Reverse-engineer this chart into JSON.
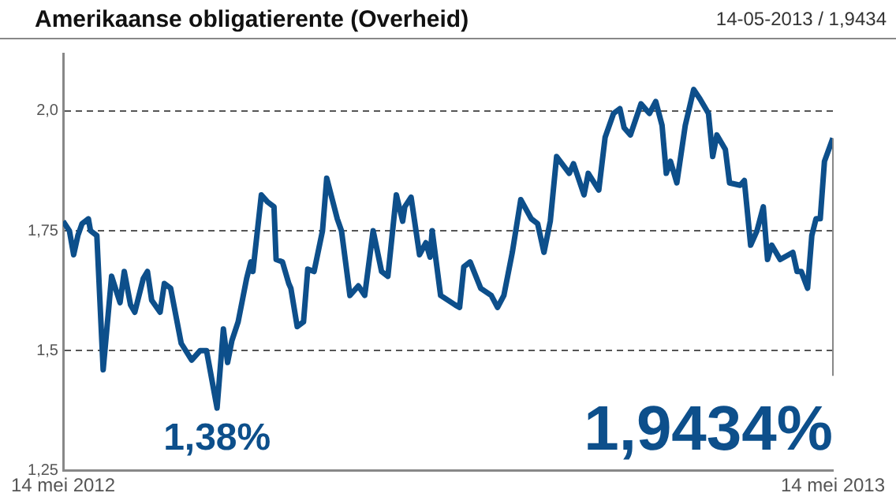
{
  "chart_data": {
    "type": "line",
    "title": "Amerikaanse obligatierente (Overheid)",
    "subtitle": "14-05-2013 / 1,9434",
    "x": [
      "2012-05-14",
      "2012-05-17",
      "2012-05-19",
      "2012-05-21",
      "2012-05-23",
      "2012-05-26",
      "2012-05-27",
      "2012-05-30",
      "2012-06-02",
      "2012-06-06",
      "2012-06-10",
      "2012-06-12",
      "2012-06-15",
      "2012-06-17",
      "2012-06-21",
      "2012-06-23",
      "2012-06-25",
      "2012-06-29",
      "2012-07-01",
      "2012-07-04",
      "2012-07-09",
      "2012-07-14",
      "2012-07-18",
      "2012-07-21",
      "2012-07-26",
      "2012-07-29",
      "2012-07-31",
      "2012-08-02",
      "2012-08-05",
      "2012-08-09",
      "2012-08-11",
      "2012-08-12",
      "2012-08-16",
      "2012-08-19",
      "2012-08-22",
      "2012-08-23",
      "2012-08-26",
      "2012-08-29",
      "2012-08-30",
      "2012-09-02",
      "2012-09-05",
      "2012-09-07",
      "2012-09-10",
      "2012-09-14",
      "2012-09-16",
      "2012-09-21",
      "2012-09-23",
      "2012-09-27",
      "2012-10-01",
      "2012-10-04",
      "2012-10-08",
      "2012-10-12",
      "2012-10-15",
      "2012-10-19",
      "2012-10-22",
      "2012-10-23",
      "2012-10-26",
      "2012-10-30",
      "2012-11-02",
      "2012-11-04",
      "2012-11-05",
      "2012-11-09",
      "2012-11-16",
      "2012-11-18",
      "2012-11-20",
      "2012-11-23",
      "2012-11-28",
      "2012-12-03",
      "2012-12-06",
      "2012-12-09",
      "2012-12-13",
      "2012-12-17",
      "2012-12-22",
      "2012-12-25",
      "2012-12-28",
      "2012-12-31",
      "2013-01-03",
      "2013-01-09",
      "2013-01-11",
      "2013-01-16",
      "2013-01-18",
      "2013-01-23",
      "2013-01-26",
      "2013-01-30",
      "2013-02-02",
      "2013-02-04",
      "2013-02-07",
      "2013-02-12",
      "2013-02-16",
      "2013-02-19",
      "2013-02-22",
      "2013-02-24",
      "2013-02-26",
      "2013-03-01",
      "2013-03-05",
      "2013-03-09",
      "2013-03-12",
      "2013-03-16",
      "2013-03-18",
      "2013-03-20",
      "2013-03-24",
      "2013-03-26",
      "2013-03-31",
      "2013-04-02",
      "2013-04-05",
      "2013-04-08",
      "2013-04-11",
      "2013-04-13",
      "2013-04-15",
      "2013-04-19",
      "2013-04-25",
      "2013-04-27",
      "2013-04-29",
      "2013-05-02",
      "2013-05-04",
      "2013-05-06",
      "2013-05-08",
      "2013-05-10",
      "2013-05-14"
    ],
    "series": [
      {
        "color": "#0d4f8b",
        "values": [
          1.77,
          1.75,
          1.7,
          1.74,
          1.765,
          1.775,
          1.75,
          1.74,
          1.46,
          1.655,
          1.6,
          1.665,
          1.595,
          1.58,
          1.65,
          1.665,
          1.605,
          1.58,
          1.64,
          1.63,
          1.515,
          1.48,
          1.5,
          1.5,
          1.38,
          1.545,
          1.475,
          1.52,
          1.56,
          1.65,
          1.685,
          1.665,
          1.825,
          1.81,
          1.8,
          1.69,
          1.685,
          1.64,
          1.63,
          1.55,
          1.56,
          1.67,
          1.665,
          1.75,
          1.86,
          1.775,
          1.75,
          1.615,
          1.635,
          1.615,
          1.75,
          1.665,
          1.655,
          1.825,
          1.77,
          1.8,
          1.82,
          1.7,
          1.725,
          1.695,
          1.75,
          1.615,
          1.595,
          1.59,
          1.675,
          1.685,
          1.63,
          1.615,
          1.59,
          1.615,
          1.705,
          1.815,
          1.775,
          1.765,
          1.705,
          1.77,
          1.905,
          1.87,
          1.89,
          1.825,
          1.87,
          1.835,
          1.945,
          1.995,
          2.005,
          1.965,
          1.95,
          2.015,
          1.995,
          2.02,
          1.97,
          1.87,
          1.895,
          1.85,
          1.97,
          2.045,
          2.025,
          1.995,
          1.905,
          1.95,
          1.92,
          1.85,
          1.845,
          1.855,
          1.72,
          1.75,
          1.8,
          1.69,
          1.72,
          1.69,
          1.705,
          1.665,
          1.665,
          1.63,
          1.74,
          1.775,
          1.775,
          1.895,
          1.9434
        ]
      }
    ],
    "xlim": [
      "2012-05-14",
      "2013-05-14"
    ],
    "xticks": [
      {
        "value": "2012-05-14",
        "label": "14 mei 2012"
      },
      {
        "value": "2013-05-14",
        "label": "14 mei 2013"
      }
    ],
    "ylim": [
      1.25,
      2.12
    ],
    "yticks": [
      {
        "value": 1.25,
        "label": "1,25"
      },
      {
        "value": 1.5,
        "label": "1,5"
      },
      {
        "value": 1.75,
        "label": "1,75"
      },
      {
        "value": 2.0,
        "label": "2,0"
      }
    ],
    "grid": "y",
    "legend": false,
    "marker": "none",
    "line_style": "solid",
    "annotations": [
      {
        "text": "1,38%",
        "x": "2012-07-26",
        "y": 1.38
      },
      {
        "text": "1,9434%",
        "x": "2013-05-14",
        "y": 1.9434
      }
    ]
  }
}
